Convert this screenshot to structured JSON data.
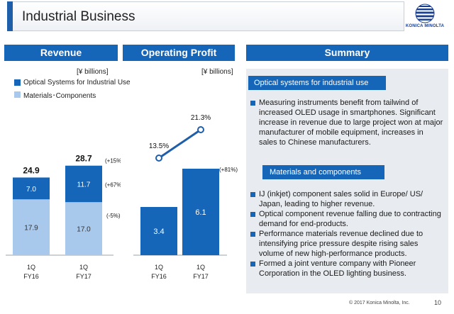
{
  "page": {
    "title": "Industrial Business",
    "logo_text": "KONICA MINOLTA",
    "copyright": "© 2017 Konica Minolta, Inc.",
    "page_number": "10"
  },
  "headers": {
    "revenue": "Revenue",
    "operating_profit": "Operating Profit",
    "summary": "Summary"
  },
  "revenue": {
    "unit": "[¥ billions]",
    "legend": [
      "Optical Systems for Industrial Use",
      "Materials･Components"
    ]
  },
  "operating_profit": {
    "unit": "[¥ billions]"
  },
  "chart_data": [
    {
      "type": "bar",
      "stacked": true,
      "categories": [
        "1Q FY16",
        "1Q FY17"
      ],
      "category_lines": [
        [
          "1Q",
          "FY16"
        ],
        [
          "1Q",
          "FY17"
        ]
      ],
      "series": [
        {
          "name": "Materials･Components",
          "values": [
            17.9,
            17.0
          ],
          "color": "#a8c8ec",
          "change": "(-5%)"
        },
        {
          "name": "Optical Systems for Industrial Use",
          "values": [
            7.0,
            11.7
          ],
          "color": "#1565b8",
          "change": "(+67%)"
        }
      ],
      "totals": [
        "24.9",
        "28.7"
      ],
      "total_change": "(+15%)",
      "ylim": [
        0,
        30
      ]
    },
    {
      "type": "bar",
      "categories": [
        "1Q FY16",
        "1Q FY17"
      ],
      "category_lines": [
        [
          "1Q",
          "FY16"
        ],
        [
          "1Q",
          "FY17"
        ]
      ],
      "values": [
        3.4,
        6.1
      ],
      "labels": [
        "3.4",
        "6.1"
      ],
      "color": "#1565b8",
      "change": "(+81%)",
      "margin": {
        "values": [
          13.5,
          21.3
        ],
        "labels": [
          "13.5%",
          "21.3%"
        ],
        "color": "#1f5ea8"
      },
      "ylim": [
        0,
        7
      ]
    }
  ],
  "summary": {
    "sections": [
      {
        "heading": "Optical systems for industrial use",
        "bullets": [
          "Measuring instruments benefit from tailwind of increased OLED usage in smartphones. Significant increase in revenue due to large project won at major manufacturer of mobile equipment, increases in sales to Chinese manufacturers."
        ]
      },
      {
        "heading": "Materials and components",
        "bullets": [
          "IJ (inkjet) component sales solid in Europe/ US/ Japan, leading to higher revenue.",
          "Optical component revenue falling due to contracting demand for end-products.",
          "Performance materials revenue declined due to intensifying price pressure despite rising sales volume of new high-performance products.",
          "Formed a joint venture company with Pioneer Corporation in the OLED lighting business."
        ]
      }
    ]
  },
  "colors": {
    "accent": "#1565b8",
    "light_bar": "#a8c8ec",
    "summary_bg": "#e8ebef"
  }
}
